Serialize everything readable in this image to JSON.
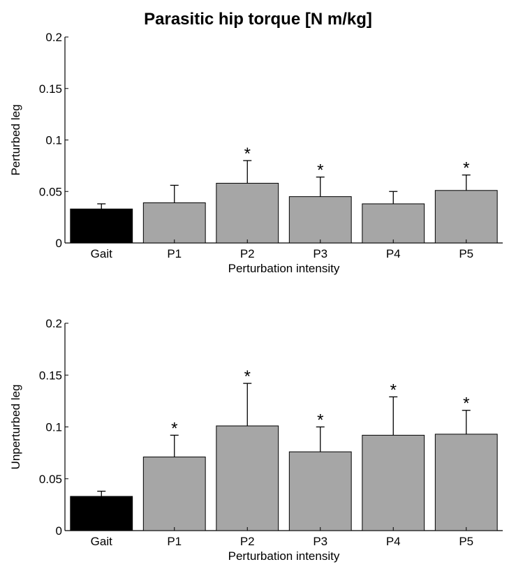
{
  "figure": {
    "title": "Parasitic hip torque [N m/kg]"
  },
  "chart_data": [
    {
      "type": "bar",
      "title": "Parasitic hip torque [N m/kg]",
      "xlabel": "Perturbation intensity",
      "ylabel": "Perturbed leg",
      "categories": [
        "Gait",
        "P1",
        "P2",
        "P3",
        "P4",
        "P5"
      ],
      "values": [
        0.033,
        0.039,
        0.058,
        0.045,
        0.038,
        0.051
      ],
      "error": [
        0.005,
        0.017,
        0.022,
        0.019,
        0.012,
        0.015
      ],
      "significant": [
        "",
        "",
        "*",
        "*",
        "",
        "*"
      ],
      "colors": [
        "#000000",
        "#a6a6a6",
        "#a6a6a6",
        "#a6a6a6",
        "#a6a6a6",
        "#a6a6a6"
      ],
      "ylim": [
        0,
        0.2
      ],
      "yticks": [
        "0",
        "0.05",
        "0.1",
        "0.15",
        "0.2"
      ],
      "grid": false
    },
    {
      "type": "bar",
      "xlabel": "Perturbation intensity",
      "ylabel": "Unperturbed leg",
      "categories": [
        "Gait",
        "P1",
        "P2",
        "P3",
        "P4",
        "P5"
      ],
      "values": [
        0.033,
        0.071,
        0.101,
        0.076,
        0.092,
        0.093
      ],
      "error": [
        0.005,
        0.021,
        0.041,
        0.024,
        0.037,
        0.023
      ],
      "significant": [
        "",
        "*",
        "*",
        "*",
        "*",
        "*"
      ],
      "colors": [
        "#000000",
        "#a6a6a6",
        "#a6a6a6",
        "#a6a6a6",
        "#a6a6a6",
        "#a6a6a6"
      ],
      "ylim": [
        0,
        0.2
      ],
      "yticks": [
        "0",
        "0.05",
        "0.1",
        "0.15",
        "0.2"
      ],
      "grid": false
    }
  ]
}
